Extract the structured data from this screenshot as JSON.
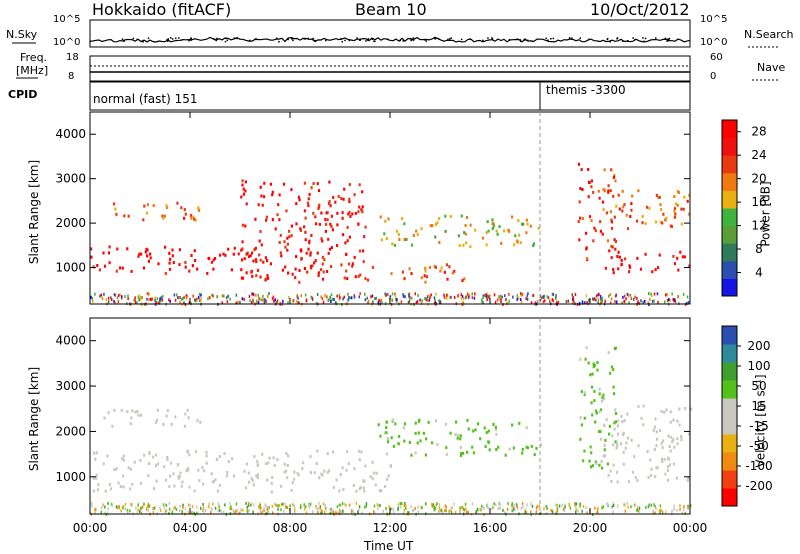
{
  "header": {
    "station": "Hokkaido (fitACF)",
    "beam": "Beam 10",
    "date": "10/Oct/2012"
  },
  "top_panels": {
    "nsky_label": "N.Sky",
    "nsearch_label": "N.Search",
    "nsky_ticks": [
      "10^5",
      "10^0"
    ],
    "nsearch_ticks": [
      "10^5",
      "10^0"
    ],
    "freq_label": "Freq.",
    "freq_unit": "[MHz]",
    "freq_ticks": [
      "18",
      "8"
    ],
    "nave_label": "Nave",
    "nave_ticks": [
      "60",
      "0"
    ],
    "cpid_label": "CPID",
    "cpid_segments": [
      {
        "label": "normal (fast) 151",
        "start": 0,
        "end": 18
      },
      {
        "label": "themis -3300",
        "start": 18,
        "end": 24
      }
    ]
  },
  "chart_data": [
    {
      "type": "heatmap",
      "name_label": "Power",
      "xlabel": "Time UT",
      "ylabel": "Slant Range [km]",
      "x_ticks": [
        "00:00",
        "04:00",
        "08:00",
        "12:00",
        "16:00",
        "20:00",
        "00:00"
      ],
      "xlim": [
        0,
        24
      ],
      "ylim": [
        180,
        4500
      ],
      "y_ticks": [
        1000,
        2000,
        3000,
        4000
      ],
      "colorbar": {
        "label": "Power [dB]",
        "ticks": [
          4,
          8,
          12,
          16,
          20,
          24,
          28
        ],
        "range": [
          0,
          30
        ],
        "colors": [
          "#1414e6",
          "#2a4fb0",
          "#2f7a5a",
          "#5a9e3a",
          "#3fb53f",
          "#e8b010",
          "#f07a10",
          "#e83a10",
          "#f01010",
          "#ff0000"
        ]
      },
      "structures": [
        {
          "feature": "strong near-range echoes",
          "t": [
            0,
            9.5
          ],
          "range_km": [
            900,
            1500
          ],
          "value_db": 28
        },
        {
          "feature": "band 2000-2400 km",
          "t": [
            0.5,
            4.5
          ],
          "range_km": [
            2100,
            2500
          ],
          "value_db": 20
        },
        {
          "feature": "rising streaks",
          "t": [
            6,
            11
          ],
          "range_km": [
            700,
            3000
          ],
          "value_db": 26
        },
        {
          "feature": "midday band",
          "t": [
            11.5,
            18
          ],
          "range_km": [
            1500,
            2200
          ],
          "value_db": 16
        },
        {
          "feature": "low-range arc",
          "t": [
            11,
            15
          ],
          "range_km": [
            700,
            1100
          ],
          "value_db": 22
        },
        {
          "feature": "evening decreasing streak",
          "t": [
            19.5,
            21
          ],
          "range_km": [
            1200,
            3400
          ],
          "value_db": 24
        },
        {
          "feature": "evening near-range echoes",
          "t": [
            20.5,
            24
          ],
          "range_km": [
            900,
            1400
          ],
          "value_db": 28
        },
        {
          "feature": "evening band",
          "t": [
            20.5,
            24
          ],
          "range_km": [
            1900,
            2800
          ],
          "value_db": 20
        }
      ]
    },
    {
      "type": "heatmap",
      "name_label": "Velocity",
      "xlabel": "Time UT",
      "ylabel": "Slant Range [km]",
      "x_ticks": [
        "00:00",
        "04:00",
        "08:00",
        "12:00",
        "16:00",
        "20:00",
        "00:00"
      ],
      "xlim": [
        0,
        24
      ],
      "ylim": [
        180,
        4500
      ],
      "y_ticks": [
        1000,
        2000,
        3000,
        4000
      ],
      "colorbar": {
        "label": "Velocity [m s⁻¹]",
        "ticks": [
          "200",
          "100",
          "50",
          "15",
          "-15",
          "-50",
          "-100",
          "-200"
        ],
        "range": [
          -250,
          250
        ],
        "colors": [
          "#ff0000",
          "#f04010",
          "#f08a10",
          "#e8b010",
          "#c8c8c0",
          "#c8c8c0",
          "#52c21a",
          "#3fa030",
          "#2f8a9a",
          "#2a4fb0"
        ]
      },
      "structures": [
        {
          "feature": "ground scatter near range",
          "t": [
            0,
            12
          ],
          "range_km": [
            700,
            1600
          ],
          "value_ms": 0
        },
        {
          "feature": "band 2000-2400 km",
          "t": [
            0.5,
            4.5
          ],
          "range_km": [
            2100,
            2500
          ],
          "value_ms": 0
        },
        {
          "feature": "midday ionospheric band",
          "t": [
            11.5,
            18
          ],
          "range_km": [
            1500,
            2300
          ],
          "value_ms": 60
        },
        {
          "feature": "evening streak",
          "t": [
            19.5,
            21
          ],
          "range_km": [
            1200,
            3900
          ],
          "value_ms": 60
        },
        {
          "feature": "evening ground scatter",
          "t": [
            20.5,
            24
          ],
          "range_km": [
            900,
            2600
          ],
          "value_ms": 0
        }
      ]
    }
  ]
}
